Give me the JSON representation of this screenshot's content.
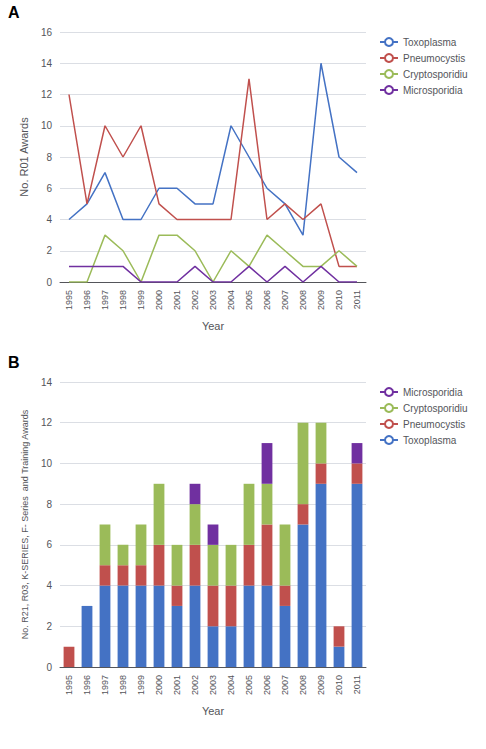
{
  "chart_data": [
    {
      "type": "line",
      "annotation": "A",
      "categories": [
        "1995",
        "1996",
        "1997",
        "1998",
        "1999",
        "2000",
        "2001",
        "2002",
        "2003",
        "2004",
        "2005",
        "2006",
        "2007",
        "2008",
        "2009",
        "2010",
        "2011"
      ],
      "series": [
        {
          "name": "Toxoplasma",
          "color": "#4472C4",
          "values": [
            4,
            5,
            7,
            4,
            4,
            6,
            6,
            5,
            5,
            10,
            8,
            6,
            5,
            3,
            14,
            8,
            7
          ]
        },
        {
          "name": "Pneumocystis",
          "color": "#C0504D",
          "values": [
            12,
            5,
            10,
            8,
            10,
            5,
            4,
            4,
            4,
            4,
            13,
            4,
            5,
            4,
            5,
            1,
            1
          ]
        },
        {
          "name": "Cryptosporidiu",
          "color": "#9BBB59",
          "values": [
            0,
            0,
            3,
            2,
            0,
            3,
            3,
            2,
            0,
            2,
            1,
            3,
            2,
            1,
            1,
            2,
            1
          ]
        },
        {
          "name": "Microsporidia",
          "color": "#7030A0",
          "values": [
            1,
            1,
            1,
            1,
            0,
            0,
            0,
            1,
            0,
            0,
            1,
            0,
            1,
            0,
            1,
            0,
            0
          ]
        }
      ],
      "xlabel": "Year",
      "ylabel": "No. R01 Awards",
      "ylim": [
        0,
        16
      ],
      "yticks": [
        0,
        2,
        4,
        6,
        8,
        10,
        12,
        14,
        16
      ],
      "grid": true,
      "legend": "right"
    },
    {
      "type": "bar",
      "annotation": "B",
      "stacked": true,
      "categories": [
        "1995",
        "1996",
        "1997",
        "1998",
        "1999",
        "2000",
        "2001",
        "2002",
        "2003",
        "2004",
        "2005",
        "2006",
        "2007",
        "2008",
        "2009",
        "2010",
        "2011"
      ],
      "series": [
        {
          "name": "Toxoplasma",
          "color": "#4472C4",
          "values": [
            0,
            3,
            4,
            4,
            4,
            4,
            3,
            4,
            2,
            2,
            4,
            4,
            3,
            7,
            9,
            1,
            9
          ]
        },
        {
          "name": "Pneumocystis",
          "color": "#C0504D",
          "values": [
            1,
            0,
            1,
            1,
            1,
            2,
            1,
            2,
            2,
            2,
            2,
            3,
            1,
            1,
            1,
            1,
            1
          ]
        },
        {
          "name": "Cryptosporidiu",
          "color": "#9BBB59",
          "values": [
            0,
            0,
            2,
            1,
            2,
            3,
            2,
            2,
            2,
            2,
            3,
            2,
            3,
            4,
            2,
            0,
            0
          ]
        },
        {
          "name": "Microsporidia",
          "color": "#7030A0",
          "values": [
            0,
            0,
            0,
            0,
            0,
            0,
            0,
            1,
            1,
            0,
            0,
            2,
            0,
            0,
            0,
            0,
            1
          ]
        }
      ],
      "xlabel": "Year",
      "ylabel": "No. R21, R03, K-SERIES, F- Series  and Training Awards",
      "ylim": [
        0,
        14
      ],
      "yticks": [
        0,
        2,
        4,
        6,
        8,
        10,
        12,
        14
      ],
      "grid": true,
      "legend": "right"
    }
  ]
}
